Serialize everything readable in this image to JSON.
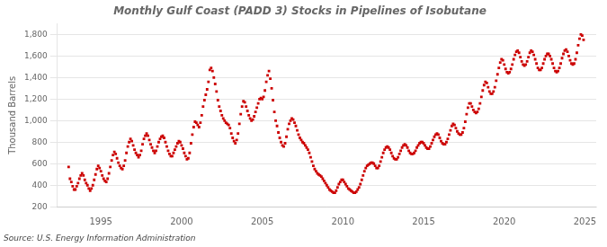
{
  "chart_data": {
    "type": "scatter",
    "title": "Monthly Gulf Coast (PADD 3) Stocks in Pipelines of Isobutane",
    "ylabel": "Thousand Barrels",
    "annotations": [
      "Source: U.S. Energy Information Administration"
    ],
    "color": "#cc0000",
    "marker": "square",
    "grid": "y",
    "xlim": [
      1992.3,
      2025.7
    ],
    "xticks": [
      1995,
      2000,
      2005,
      2010,
      2015,
      2020,
      2025
    ],
    "ylim": [
      200,
      1900
    ],
    "yticks": [
      200,
      400,
      600,
      800,
      {
        "value": 1000,
        "label": "1,000"
      },
      {
        "value": 1200,
        "label": "1,200"
      },
      {
        "value": 1400,
        "label": "1,400"
      },
      {
        "value": 1600,
        "label": "1,600"
      },
      {
        "value": 1800,
        "label": "1,800"
      }
    ],
    "x": [
      1993.0,
      1993.083,
      1993.167,
      1993.25,
      1993.333,
      1993.417,
      1993.5,
      1993.583,
      1993.667,
      1993.75,
      1993.833,
      1993.917,
      1994.0,
      1994.083,
      1994.167,
      1994.25,
      1994.333,
      1994.417,
      1994.5,
      1994.583,
      1994.667,
      1994.75,
      1994.833,
      1994.917,
      1995.0,
      1995.083,
      1995.167,
      1995.25,
      1995.333,
      1995.417,
      1995.5,
      1995.583,
      1995.667,
      1995.75,
      1995.833,
      1995.917,
      1996.0,
      1996.083,
      1996.167,
      1996.25,
      1996.333,
      1996.417,
      1996.5,
      1996.583,
      1996.667,
      1996.75,
      1996.833,
      1996.917,
      1997.0,
      1997.083,
      1997.167,
      1997.25,
      1997.333,
      1997.417,
      1997.5,
      1997.583,
      1997.667,
      1997.75,
      1997.833,
      1997.917,
      1998.0,
      1998.083,
      1998.167,
      1998.25,
      1998.333,
      1998.417,
      1998.5,
      1998.583,
      1998.667,
      1998.75,
      1998.833,
      1998.917,
      1999.0,
      1999.083,
      1999.167,
      1999.25,
      1999.333,
      1999.417,
      1999.5,
      1999.583,
      1999.667,
      1999.75,
      1999.833,
      1999.917,
      2000.0,
      2000.083,
      2000.167,
      2000.25,
      2000.333,
      2000.417,
      2000.5,
      2000.583,
      2000.667,
      2000.75,
      2000.833,
      2000.917,
      2001.0,
      2001.083,
      2001.167,
      2001.25,
      2001.333,
      2001.417,
      2001.5,
      2001.583,
      2001.667,
      2001.75,
      2001.833,
      2001.917,
      2002.0,
      2002.083,
      2002.167,
      2002.25,
      2002.333,
      2002.417,
      2002.5,
      2002.583,
      2002.667,
      2002.75,
      2002.833,
      2002.917,
      2003.0,
      2003.083,
      2003.167,
      2003.25,
      2003.333,
      2003.417,
      2003.5,
      2003.583,
      2003.667,
      2003.75,
      2003.833,
      2003.917,
      2004.0,
      2004.083,
      2004.167,
      2004.25,
      2004.333,
      2004.417,
      2004.5,
      2004.583,
      2004.667,
      2004.75,
      2004.833,
      2004.917,
      2005.0,
      2005.083,
      2005.167,
      2005.25,
      2005.333,
      2005.417,
      2005.5,
      2005.583,
      2005.667,
      2005.75,
      2005.833,
      2005.917,
      2006.0,
      2006.083,
      2006.167,
      2006.25,
      2006.333,
      2006.417,
      2006.5,
      2006.583,
      2006.667,
      2006.75,
      2006.833,
      2006.917,
      2007.0,
      2007.083,
      2007.167,
      2007.25,
      2007.333,
      2007.417,
      2007.5,
      2007.583,
      2007.667,
      2007.75,
      2007.833,
      2007.917,
      2008.0,
      2008.083,
      2008.167,
      2008.25,
      2008.333,
      2008.417,
      2008.5,
      2008.583,
      2008.667,
      2008.75,
      2008.833,
      2008.917,
      2009.0,
      2009.083,
      2009.167,
      2009.25,
      2009.333,
      2009.417,
      2009.5,
      2009.583,
      2009.667,
      2009.75,
      2009.833,
      2009.917,
      2010.0,
      2010.083,
      2010.167,
      2010.25,
      2010.333,
      2010.417,
      2010.5,
      2010.583,
      2010.667,
      2010.75,
      2010.833,
      2010.917,
      2011.0,
      2011.083,
      2011.167,
      2011.25,
      2011.333,
      2011.417,
      2011.5,
      2011.583,
      2011.667,
      2011.75,
      2011.833,
      2011.917,
      2012.0,
      2012.083,
      2012.167,
      2012.25,
      2012.333,
      2012.417,
      2012.5,
      2012.583,
      2012.667,
      2012.75,
      2012.833,
      2012.917,
      2013.0,
      2013.083,
      2013.167,
      2013.25,
      2013.333,
      2013.417,
      2013.5,
      2013.583,
      2013.667,
      2013.75,
      2013.833,
      2013.917,
      2014.0,
      2014.083,
      2014.167,
      2014.25,
      2014.333,
      2014.417,
      2014.5,
      2014.583,
      2014.667,
      2014.75,
      2014.833,
      2014.917,
      2015.0,
      2015.083,
      2015.167,
      2015.25,
      2015.333,
      2015.417,
      2015.5,
      2015.583,
      2015.667,
      2015.75,
      2015.833,
      2015.917,
      2016.0,
      2016.083,
      2016.167,
      2016.25,
      2016.333,
      2016.417,
      2016.5,
      2016.583,
      2016.667,
      2016.75,
      2016.833,
      2016.917,
      2017.0,
      2017.083,
      2017.167,
      2017.25,
      2017.333,
      2017.417,
      2017.5,
      2017.583,
      2017.667,
      2017.75,
      2017.833,
      2017.917,
      2018.0,
      2018.083,
      2018.167,
      2018.25,
      2018.333,
      2018.417,
      2018.5,
      2018.583,
      2018.667,
      2018.75,
      2018.833,
      2018.917,
      2019.0,
      2019.083,
      2019.167,
      2019.25,
      2019.333,
      2019.417,
      2019.5,
      2019.583,
      2019.667,
      2019.75,
      2019.833,
      2019.917,
      2020.0,
      2020.083,
      2020.167,
      2020.25,
      2020.333,
      2020.417,
      2020.5,
      2020.583,
      2020.667,
      2020.75,
      2020.833,
      2020.917,
      2021.0,
      2021.083,
      2021.167,
      2021.25,
      2021.333,
      2021.417,
      2021.5,
      2021.583,
      2021.667,
      2021.75,
      2021.833,
      2021.917,
      2022.0,
      2022.083,
      2022.167,
      2022.25,
      2022.333,
      2022.417,
      2022.5,
      2022.583,
      2022.667,
      2022.75,
      2022.833,
      2022.917,
      2023.0,
      2023.083,
      2023.167,
      2023.25,
      2023.333,
      2023.417,
      2023.5,
      2023.583,
      2023.667,
      2023.75,
      2023.833,
      2023.917,
      2024.0,
      2024.083,
      2024.167,
      2024.25,
      2024.333,
      2024.417,
      2024.5,
      2024.583,
      2024.667,
      2024.75,
      2024.833,
      2024.917
    ],
    "values": [
      570,
      460,
      430,
      390,
      360,
      360,
      390,
      420,
      460,
      490,
      510,
      490,
      450,
      420,
      400,
      370,
      350,
      370,
      400,
      450,
      500,
      550,
      580,
      560,
      530,
      490,
      460,
      440,
      430,
      460,
      510,
      570,
      630,
      680,
      710,
      690,
      650,
      610,
      580,
      560,
      550,
      580,
      630,
      700,
      760,
      800,
      830,
      810,
      770,
      730,
      700,
      680,
      660,
      680,
      720,
      780,
      830,
      860,
      880,
      860,
      820,
      780,
      750,
      720,
      700,
      720,
      760,
      800,
      830,
      850,
      860,
      840,
      800,
      760,
      720,
      690,
      670,
      670,
      700,
      730,
      760,
      790,
      810,
      800,
      770,
      740,
      700,
      670,
      640,
      650,
      700,
      790,
      870,
      940,
      990,
      980,
      960,
      940,
      980,
      1050,
      1130,
      1190,
      1240,
      1290,
      1360,
      1470,
      1490,
      1460,
      1400,
      1340,
      1270,
      1190,
      1130,
      1090,
      1050,
      1020,
      1000,
      980,
      970,
      960,
      930,
      880,
      840,
      810,
      790,
      820,
      880,
      970,
      1060,
      1130,
      1180,
      1170,
      1130,
      1090,
      1050,
      1020,
      1000,
      1010,
      1040,
      1080,
      1120,
      1160,
      1200,
      1210,
      1200,
      1220,
      1280,
      1360,
      1420,
      1460,
      1390,
      1300,
      1190,
      1080,
      1000,
      950,
      890,
      840,
      800,
      770,
      760,
      790,
      850,
      920,
      970,
      1000,
      1020,
      1010,
      980,
      950,
      910,
      870,
      840,
      820,
      800,
      790,
      770,
      750,
      730,
      700,
      660,
      620,
      580,
      550,
      530,
      510,
      500,
      490,
      480,
      460,
      440,
      420,
      400,
      380,
      360,
      350,
      340,
      330,
      330,
      350,
      380,
      410,
      430,
      450,
      450,
      430,
      410,
      390,
      370,
      360,
      350,
      340,
      330,
      330,
      340,
      360,
      380,
      410,
      450,
      490,
      530,
      560,
      580,
      590,
      600,
      610,
      610,
      600,
      580,
      560,
      560,
      580,
      620,
      660,
      700,
      730,
      750,
      760,
      750,
      730,
      700,
      670,
      650,
      640,
      640,
      660,
      690,
      720,
      750,
      770,
      780,
      770,
      750,
      720,
      700,
      690,
      690,
      700,
      720,
      750,
      770,
      790,
      800,
      800,
      790,
      770,
      750,
      740,
      740,
      760,
      790,
      820,
      850,
      870,
      880,
      870,
      840,
      810,
      790,
      780,
      780,
      800,
      830,
      870,
      910,
      950,
      970,
      960,
      930,
      900,
      880,
      870,
      870,
      890,
      930,
      990,
      1060,
      1120,
      1160,
      1160,
      1130,
      1100,
      1080,
      1070,
      1080,
      1110,
      1160,
      1220,
      1280,
      1330,
      1360,
      1350,
      1310,
      1270,
      1250,
      1250,
      1270,
      1310,
      1370,
      1430,
      1490,
      1540,
      1570,
      1560,
      1520,
      1480,
      1450,
      1440,
      1450,
      1480,
      1520,
      1570,
      1610,
      1640,
      1650,
      1630,
      1590,
      1550,
      1520,
      1510,
      1520,
      1550,
      1590,
      1630,
      1650,
      1640,
      1610,
      1570,
      1530,
      1490,
      1470,
      1470,
      1490,
      1530,
      1570,
      1600,
      1620,
      1620,
      1600,
      1570,
      1530,
      1490,
      1460,
      1450,
      1460,
      1490,
      1530,
      1580,
      1620,
      1650,
      1660,
      1640,
      1600,
      1560,
      1530,
      1520,
      1530,
      1570,
      1630,
      1700,
      1760,
      1800,
      1790,
      1750
    ]
  }
}
